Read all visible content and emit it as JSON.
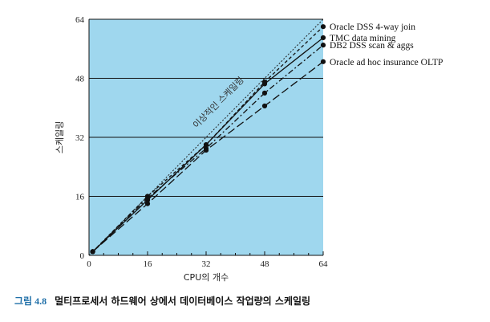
{
  "chart_data": {
    "type": "line",
    "title": "",
    "xlabel": "CPU의 개수",
    "ylabel": "스케일링",
    "xlim": [
      0,
      64
    ],
    "ylim": [
      0,
      64
    ],
    "x_ticks": [
      0,
      16,
      32,
      48,
      64
    ],
    "y_ticks": [
      0,
      16,
      32,
      48,
      64
    ],
    "grid": "horizontal",
    "legend": "right",
    "background": "#9fd7ee",
    "annotation": {
      "text": "이상적인 스케일링",
      "x": 39,
      "y": 40
    },
    "series": [
      {
        "name": "Oracle DSS 4-way join",
        "dash": "4,3",
        "x": [
          1,
          16,
          32,
          48,
          64
        ],
        "y": [
          1,
          16,
          30,
          47,
          62
        ]
      },
      {
        "name": "TMC data mining",
        "dash": "none",
        "x": [
          1,
          16,
          32,
          48,
          64
        ],
        "y": [
          1,
          15,
          30,
          46.5,
          59
        ]
      },
      {
        "name": "DB2 DSS scan & aggs",
        "dash": "7,3,2,3",
        "x": [
          1,
          16,
          32,
          48,
          64
        ],
        "y": [
          1,
          15.5,
          29,
          44,
          57
        ]
      },
      {
        "name": "Oracle ad hoc insurance OLTP",
        "dash": "10,4",
        "x": [
          1,
          16,
          32,
          48,
          64
        ],
        "y": [
          1,
          14,
          28.5,
          40.5,
          52.5
        ]
      }
    ],
    "ideal": {
      "x": [
        0,
        64
      ],
      "y": [
        0,
        64
      ],
      "dash": "2,2"
    }
  },
  "caption": {
    "figure_number": "그림 4.8",
    "text": "멀티프로세서 하드웨어 상에서 데이터베이스 작업량의 스케일링"
  }
}
